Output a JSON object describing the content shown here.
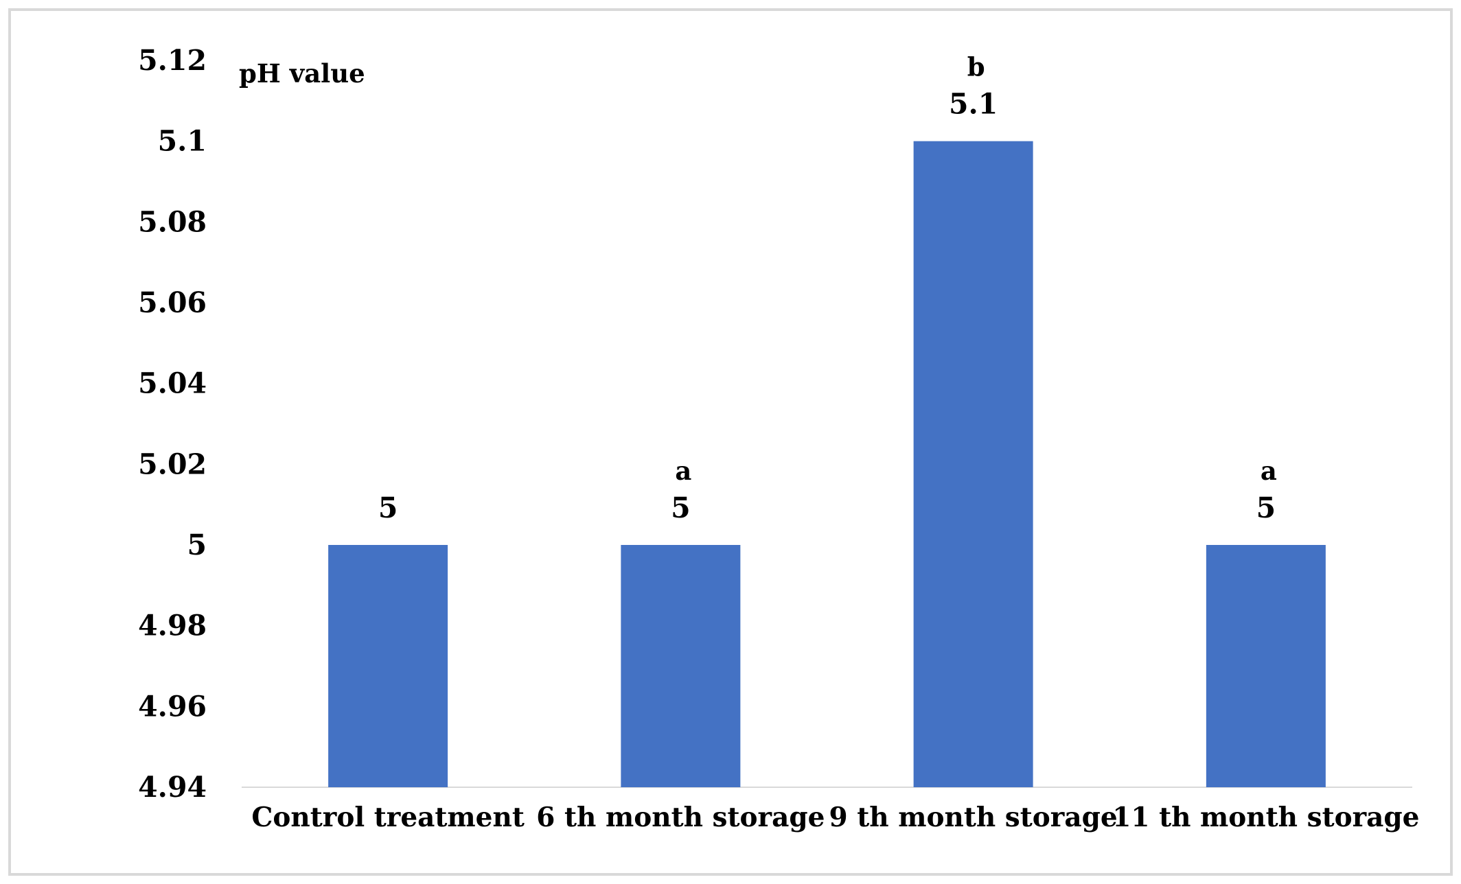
{
  "chart_data": {
    "type": "bar",
    "categories": [
      "Control treatment",
      "6 th month storage",
      "9 th month storage",
      "11 th month storage"
    ],
    "values": [
      5.0,
      5.0,
      5.1,
      5.0
    ],
    "data_labels": [
      "5",
      "5",
      "5.1",
      "5"
    ],
    "significance_letters": [
      "",
      "a",
      "b",
      "a"
    ],
    "title": "",
    "xlabel": "",
    "ylabel": "pH value",
    "ylim": [
      4.94,
      5.12
    ],
    "yticks": [
      5.12,
      5.1,
      5.08,
      5.06,
      5.04,
      5.02,
      5,
      4.98,
      4.96,
      4.94
    ],
    "ytick_labels": [
      "5.12",
      "5.1",
      "5.08",
      "5.06",
      "5.04",
      "5.02",
      "5",
      "4.98",
      "4.96",
      "4.94"
    ],
    "grid": false,
    "legend": "none",
    "colors": {
      "bar": "#4472C4",
      "frame": "#D9D9D9",
      "axis": "#D9D9D9",
      "text": "#000000"
    }
  }
}
